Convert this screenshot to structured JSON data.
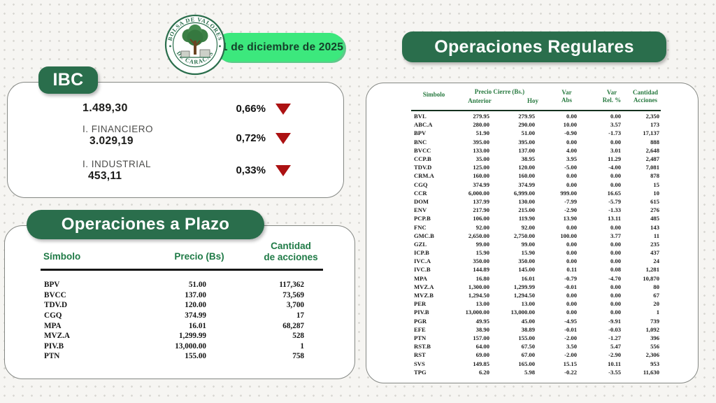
{
  "colors": {
    "brand_green": "#2a6e4c",
    "bright_green": "#3ce87d",
    "table_header_green": "#27793f",
    "down_red": "#ac1112"
  },
  "header": {
    "date_badge": "11 de diciembre de 2025",
    "logo": {
      "top_arc": "BOLSA DE VALORES",
      "bottom_arc": "DE CARACAS"
    }
  },
  "ibc": {
    "title": "IBC",
    "rows": [
      {
        "label": "",
        "value": "1.489,30",
        "change": "0,66%",
        "direction": "down"
      },
      {
        "label": "I. FINANCIERO",
        "value": "3.029,19",
        "change": "0,72%",
        "direction": "down"
      },
      {
        "label": "I. INDUSTRIAL",
        "value": "453,11",
        "change": "0,33%",
        "direction": "down"
      }
    ]
  },
  "plazo": {
    "title": "Operaciones a Plazo",
    "headers": {
      "symbol": "Símbolo",
      "price": "Precio (Bs)",
      "quantity": "Cantidad\nde acciones"
    },
    "rows": [
      [
        "BPV",
        "51.00",
        "117,362"
      ],
      [
        "BVCC",
        "137.00",
        "73,569"
      ],
      [
        "TDV.D",
        "120.00",
        "3,700"
      ],
      [
        "CGQ",
        "374.99",
        "17"
      ],
      [
        "MPA",
        "16.01",
        "68,287"
      ],
      [
        "MVZ.A",
        "1,299.99",
        "528"
      ],
      [
        "PIV.B",
        "13,000.00",
        "1"
      ],
      [
        "PTN",
        "155.00",
        "758"
      ]
    ]
  },
  "regulares": {
    "title": "Operaciones Regulares",
    "headers": {
      "symbol": "Simbolo",
      "price_group": "Precio Cierre (Bs.)",
      "previous": "Anterior",
      "today": "Hoy",
      "var_abs": "Var\nAbs",
      "var_rel": "Var\nRel. %",
      "quantity": "Cantidad\nAcciones"
    },
    "rows": [
      [
        "BVL",
        "279.95",
        "279.95",
        "0.00",
        "0.00",
        "2,350"
      ],
      [
        "ABC.A",
        "280.00",
        "290.00",
        "10.00",
        "3.57",
        "173"
      ],
      [
        "BPV",
        "51.90",
        "51.00",
        "-0.90",
        "-1.73",
        "17,137"
      ],
      [
        "BNC",
        "395.00",
        "395.00",
        "0.00",
        "0.00",
        "888"
      ],
      [
        "BVCC",
        "133.00",
        "137.00",
        "4.00",
        "3.01",
        "2,648"
      ],
      [
        "CCP.B",
        "35.00",
        "38.95",
        "3.95",
        "11.29",
        "2,487"
      ],
      [
        "TDV.D",
        "125.00",
        "120.00",
        "-5.00",
        "-4.00",
        "7,081"
      ],
      [
        "CRM.A",
        "160.00",
        "160.00",
        "0.00",
        "0.00",
        "878"
      ],
      [
        "CGQ",
        "374.99",
        "374.99",
        "0.00",
        "0.00",
        "15"
      ],
      [
        "CCR",
        "6,000.00",
        "6,999.00",
        "999.00",
        "16.65",
        "10"
      ],
      [
        "DOM",
        "137.99",
        "130.00",
        "-7.99",
        "-5.79",
        "615"
      ],
      [
        "ENV",
        "217.90",
        "215.00",
        "-2.90",
        "-1.33",
        "276"
      ],
      [
        "PCP.B",
        "106.00",
        "119.90",
        "13.90",
        "13.11",
        "485"
      ],
      [
        "FNC",
        "92.00",
        "92.00",
        "0.00",
        "0.00",
        "143"
      ],
      [
        "GMC.B",
        "2,650.00",
        "2,750.00",
        "100.00",
        "3.77",
        "11"
      ],
      [
        "GZL",
        "99.00",
        "99.00",
        "0.00",
        "0.00",
        "235"
      ],
      [
        "ICP.B",
        "15.90",
        "15.90",
        "0.00",
        "0.00",
        "437"
      ],
      [
        "IVC.A",
        "350.00",
        "350.00",
        "0.00",
        "0.00",
        "24"
      ],
      [
        "IVC.B",
        "144.89",
        "145.00",
        "0.11",
        "0.08",
        "1,281"
      ],
      [
        "MPA",
        "16.80",
        "16.01",
        "-0.79",
        "-4.70",
        "10,870"
      ],
      [
        "MVZ.A",
        "1,300.00",
        "1,299.99",
        "-0.01",
        "0.00",
        "80"
      ],
      [
        "MVZ.B",
        "1,294.50",
        "1,294.50",
        "0.00",
        "0.00",
        "67"
      ],
      [
        "PER",
        "13.00",
        "13.00",
        "0.00",
        "0.00",
        "20"
      ],
      [
        "PIV.B",
        "13,000.00",
        "13,000.00",
        "0.00",
        "0.00",
        "1"
      ],
      [
        "PGR",
        "49.95",
        "45.00",
        "-4.95",
        "-9.91",
        "739"
      ],
      [
        "EFE",
        "38.90",
        "38.89",
        "-0.01",
        "-0.03",
        "1,092"
      ],
      [
        "PTN",
        "157.00",
        "155.00",
        "-2.00",
        "-1.27",
        "396"
      ],
      [
        "RST.B",
        "64.00",
        "67.50",
        "3.50",
        "5.47",
        "556"
      ],
      [
        "RST",
        "69.00",
        "67.00",
        "-2.00",
        "-2.90",
        "2,306"
      ],
      [
        "SVS",
        "149.85",
        "165.00",
        "15.15",
        "10.11",
        "953"
      ],
      [
        "TPG",
        "6.20",
        "5.98",
        "-0.22",
        "-3.55",
        "11,630"
      ]
    ]
  }
}
